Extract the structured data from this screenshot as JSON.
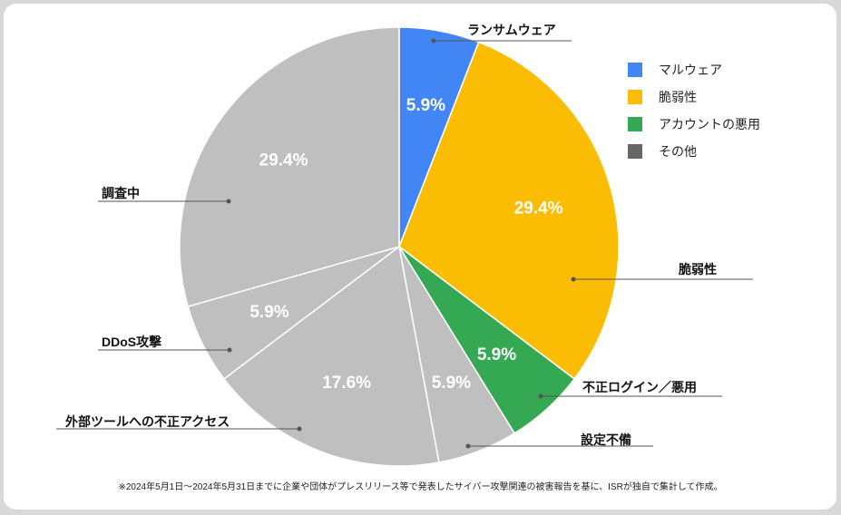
{
  "chart_data": {
    "type": "pie",
    "title": "",
    "slices": [
      {
        "label": "ランサムウェア",
        "value": 5.9,
        "display": "5.9%",
        "category": "マルウェア",
        "color": "#4285f4"
      },
      {
        "label": "脆弱性",
        "value": 29.4,
        "display": "29.4%",
        "category": "脆弱性",
        "color": "#fbbc04"
      },
      {
        "label": "不正ログイン／悪用",
        "value": 5.9,
        "display": "5.9%",
        "category": "アカウントの悪用",
        "color": "#34a853"
      },
      {
        "label": "設定不備",
        "value": 5.9,
        "display": "5.9%",
        "category": "その他",
        "color": "#bfbfbf"
      },
      {
        "label": "外部ツールへの不正アクセス",
        "value": 17.6,
        "display": "17.6%",
        "category": "その他",
        "color": "#bfbfbf"
      },
      {
        "label": "DDoS攻撃",
        "value": 5.9,
        "display": "5.9%",
        "category": "その他",
        "color": "#bfbfbf"
      },
      {
        "label": "調査中",
        "value": 29.4,
        "display": "29.4%",
        "category": "その他",
        "color": "#bfbfbf"
      }
    ],
    "legend": [
      {
        "label": "マルウェア",
        "color": "#4285f4"
      },
      {
        "label": "脆弱性",
        "color": "#fbbc04"
      },
      {
        "label": "アカウントの悪用",
        "color": "#34a853"
      },
      {
        "label": "その他",
        "color": "#666666"
      }
    ],
    "legend_position": "right",
    "footnote": "※2024年5月1日～2024年5月31日までに企業や団体がプレスリリース等で発表したサイバー攻撃関連の被害報告を基に、ISRが独自で集計して作成。"
  }
}
